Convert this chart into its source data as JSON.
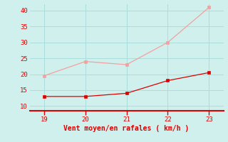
{
  "x": [
    19,
    20,
    21,
    22,
    23
  ],
  "y_moyen": [
    13,
    13,
    14,
    18,
    20.5
  ],
  "y_rafales": [
    19.5,
    24,
    23,
    30,
    41
  ],
  "color_moyen": "#dd0000",
  "color_rafales": "#f4a0a0",
  "bg_color": "#cff0ec",
  "grid_color": "#aaddda",
  "xlabel": "Vent moyen/en rafales ( km/h )",
  "xlabel_color": "#dd0000",
  "xlim": [
    18.65,
    23.35
  ],
  "ylim": [
    8.5,
    42
  ],
  "yticks": [
    10,
    15,
    20,
    25,
    30,
    35,
    40
  ],
  "xticks": [
    19,
    20,
    21,
    22,
    23
  ],
  "tick_color": "#dd0000",
  "axis_line_color": "#dd0000",
  "markersize": 3.5
}
